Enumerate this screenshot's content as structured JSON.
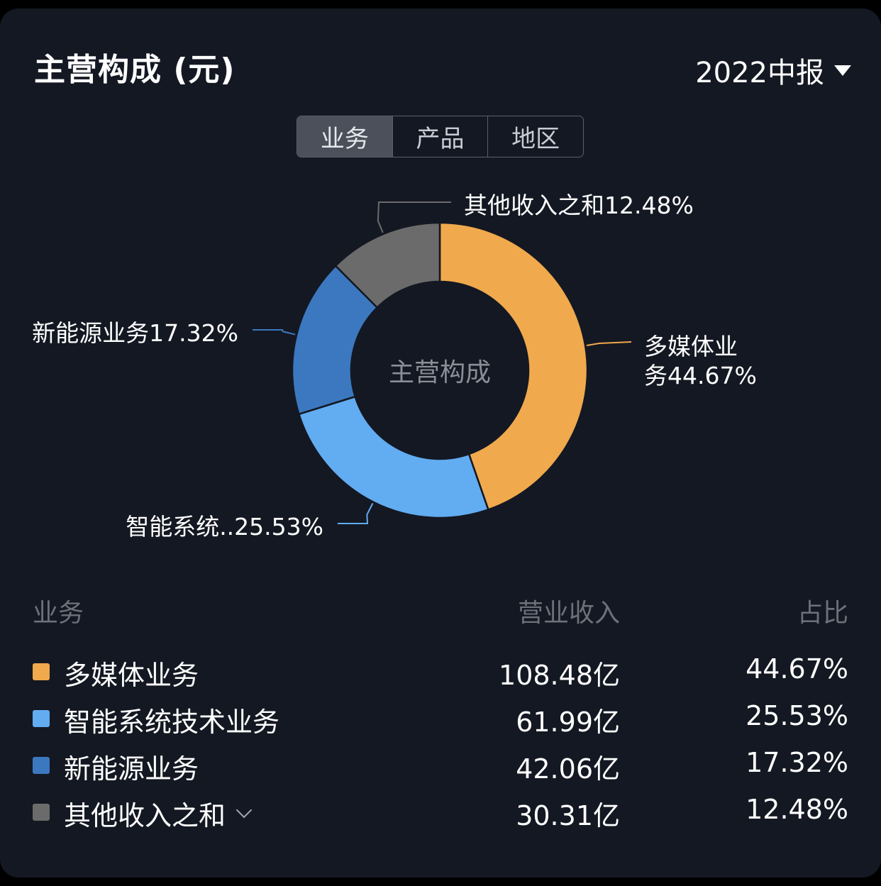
{
  "header": {
    "title": "主营构成 (元)",
    "period": "2022中报"
  },
  "tabs": [
    {
      "label": "业务",
      "active": true
    },
    {
      "label": "产品",
      "active": false
    },
    {
      "label": "地区",
      "active": false
    }
  ],
  "chart_data": {
    "type": "pie",
    "donut": true,
    "center_label": "主营构成",
    "slices": [
      {
        "name": "多媒体业务",
        "value": 44.67,
        "label": "多媒体业务44.67%",
        "color": "#F0A94D"
      },
      {
        "name": "智能系统技术业务",
        "value": 25.53,
        "label": "智能系统..25.53%",
        "color": "#62ACF2"
      },
      {
        "name": "新能源业务",
        "value": 17.32,
        "label": "新能源业务17.32%",
        "color": "#3B78C0"
      },
      {
        "name": "其他收入之和",
        "value": 12.48,
        "label": "其他收入之和12.48%",
        "color": "#6B6B6B"
      }
    ]
  },
  "legend": {
    "headers": {
      "name": "业务",
      "revenue": "营业收入",
      "percent": "占比"
    },
    "rows": [
      {
        "name": "多媒体业务",
        "revenue": "108.48亿",
        "percent": "44.67%",
        "color": "#F0A94D",
        "expandable": false
      },
      {
        "name": "智能系统技术业务",
        "revenue": "61.99亿",
        "percent": "25.53%",
        "color": "#62ACF2",
        "expandable": false
      },
      {
        "name": "新能源业务",
        "revenue": "42.06亿",
        "percent": "17.32%",
        "color": "#3B78C0",
        "expandable": false
      },
      {
        "name": "其他收入之和",
        "revenue": "30.31亿",
        "percent": "12.48%",
        "color": "#6B6B6B",
        "expandable": true
      }
    ]
  }
}
